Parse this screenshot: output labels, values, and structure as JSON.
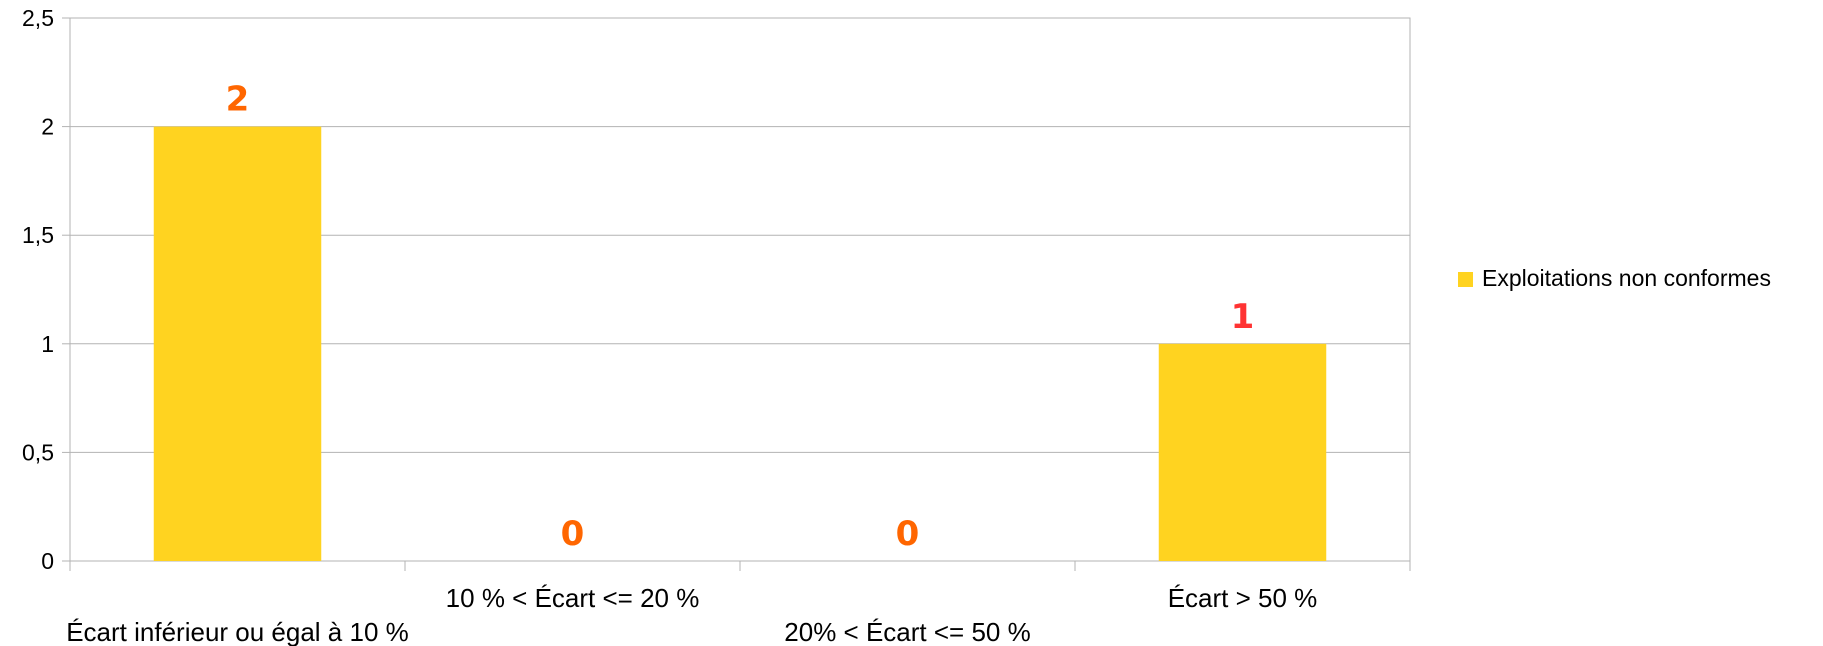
{
  "chart_data": {
    "type": "bar",
    "categories": [
      "Écart inférieur ou égal à 10 %",
      "10 % < Écart <= 20 %",
      "20% < Écart <= 50 %",
      "Écart > 50 %"
    ],
    "series": [
      {
        "name": "Exploitations non conformes",
        "values": [
          2,
          0,
          0,
          1
        ],
        "color": "#FFD320"
      }
    ],
    "data_labels": [
      "2",
      "0",
      "0",
      "1"
    ],
    "data_label_colors": [
      "#FF6600",
      "#FF6600",
      "#FF6600",
      "#FF3333"
    ],
    "y_ticks": [
      "0",
      "0,5",
      "1",
      "1,5",
      "2",
      "2,5"
    ],
    "ylim": [
      0,
      2.5
    ],
    "grid": true,
    "legend": {
      "position": "right",
      "entries": [
        "Exploitations non conformes"
      ]
    },
    "title": "",
    "xlabel": "",
    "ylabel": ""
  }
}
